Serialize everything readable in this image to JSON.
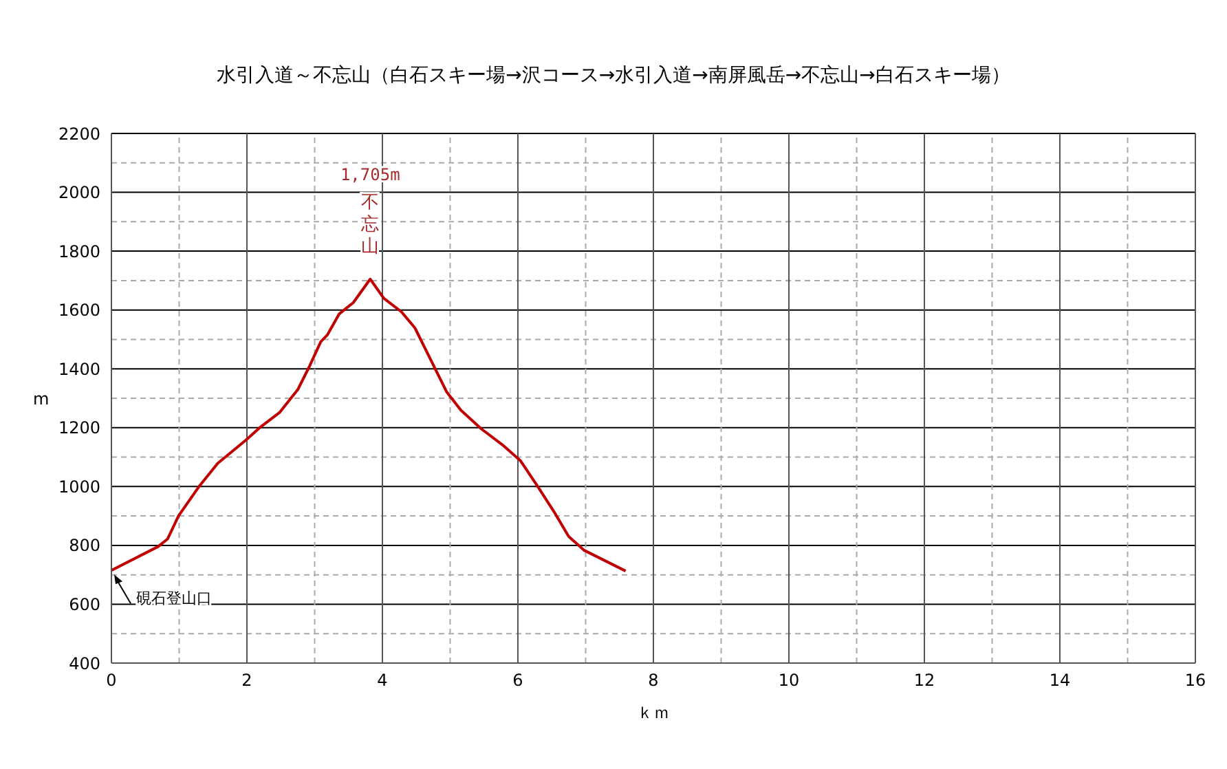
{
  "chart_data": {
    "type": "line",
    "title": "水引入道～不忘山（白石スキー場→沢コース→水引入道→南屏風岳→不忘山→白石スキー場）",
    "xlabel": "ｋｍ",
    "ylabel": "m",
    "x": [
      0,
      0.69,
      0.83,
      0.99,
      1.3,
      1.57,
      1.98,
      2.21,
      2.48,
      2.75,
      2.92,
      3.09,
      3.19,
      3.36,
      3.57,
      3.82,
      4.02,
      4.28,
      4.48,
      4.95,
      5.16,
      5.46,
      5.77,
      6.04,
      6.31,
      6.55,
      6.75,
      6.98,
      7.59
    ],
    "series": [
      {
        "color": "#c00000",
        "values": [
          715,
          796,
          822,
          900,
          1002,
          1079,
          1157,
          1204,
          1251,
          1329,
          1407,
          1492,
          1516,
          1586,
          1625,
          1705,
          1640,
          1594,
          1539,
          1321,
          1259,
          1196,
          1142,
          1087,
          994,
          908,
          830,
          783,
          713
        ]
      }
    ],
    "xlim": [
      0,
      16
    ],
    "xticks": [
      0,
      {
        "value": 1,
        "label": null
      },
      2,
      {
        "value": 3,
        "label": null
      },
      4,
      {
        "value": 5,
        "label": null
      },
      6,
      {
        "value": 7,
        "label": null
      },
      8,
      {
        "value": 9,
        "label": null
      },
      10,
      {
        "value": 11,
        "label": null
      },
      12,
      {
        "value": 13,
        "label": null
      },
      14,
      {
        "value": 15,
        "label": null
      },
      16
    ],
    "ylim": [
      400,
      2200
    ],
    "yticks": [
      400,
      {
        "value": 500,
        "label": null
      },
      600,
      {
        "value": 700,
        "label": null
      },
      800,
      {
        "value": 900,
        "label": null
      },
      1000,
      {
        "value": 1100,
        "label": null
      },
      1200,
      {
        "value": 1300,
        "label": null
      },
      1400,
      {
        "value": 1500,
        "label": null
      },
      1600,
      {
        "value": 1700,
        "label": null
      },
      1800,
      {
        "value": 1900,
        "label": null
      },
      2000,
      {
        "value": 2100,
        "label": null
      },
      2200
    ],
    "grid": true,
    "marker": "none",
    "line_style": "solid",
    "legend": false,
    "annotations": [
      "1,705m",
      {
        "text": "不忘山",
        "x": 3.82,
        "y": 1705
      },
      {
        "text": "硯石登山口",
        "x": 0,
        "y": 715
      }
    ]
  }
}
